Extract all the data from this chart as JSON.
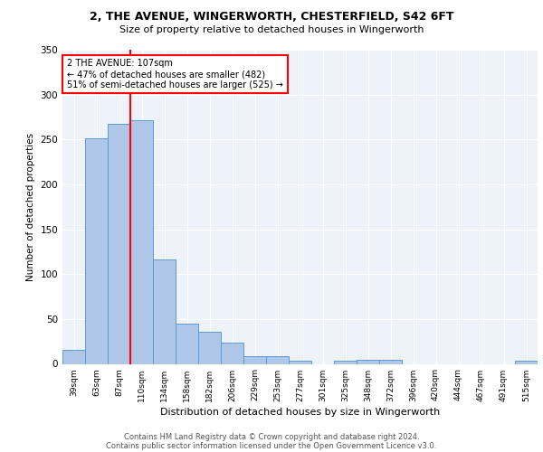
{
  "title_line1": "2, THE AVENUE, WINGERWORTH, CHESTERFIELD, S42 6FT",
  "title_line2": "Size of property relative to detached houses in Wingerworth",
  "xlabel": "Distribution of detached houses by size in Wingerworth",
  "ylabel": "Number of detached properties",
  "bar_labels": [
    "39sqm",
    "63sqm",
    "87sqm",
    "110sqm",
    "134sqm",
    "158sqm",
    "182sqm",
    "206sqm",
    "229sqm",
    "253sqm",
    "277sqm",
    "301sqm",
    "325sqm",
    "348sqm",
    "372sqm",
    "396sqm",
    "420sqm",
    "444sqm",
    "467sqm",
    "491sqm",
    "515sqm"
  ],
  "bar_values": [
    16,
    251,
    267,
    271,
    116,
    45,
    36,
    24,
    9,
    9,
    4,
    0,
    4,
    5,
    5,
    0,
    0,
    0,
    0,
    0,
    4
  ],
  "bar_color": "#aec6e8",
  "bar_edgecolor": "#5b9bd5",
  "vline_x_index": 2.5,
  "vline_color": "red",
  "annotation_text": "2 THE AVENUE: 107sqm\n← 47% of detached houses are smaller (482)\n51% of semi-detached houses are larger (525) →",
  "annotation_box_color": "white",
  "annotation_box_edgecolor": "red",
  "ylim": [
    0,
    350
  ],
  "yticks": [
    0,
    50,
    100,
    150,
    200,
    250,
    300,
    350
  ],
  "footnote_line1": "Contains HM Land Registry data © Crown copyright and database right 2024.",
  "footnote_line2": "Contains public sector information licensed under the Open Government Licence v3.0.",
  "bg_color": "#eef3fa",
  "grid_color": "white"
}
